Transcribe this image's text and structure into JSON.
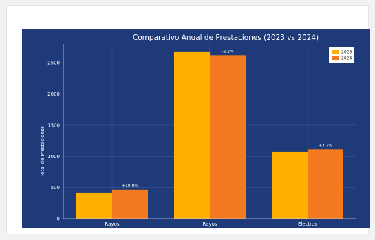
{
  "colors": {
    "page_background": "#f2f2f2",
    "plot_background": "#1f3a78",
    "grid": "#3a5696",
    "series_2023": "#ffb000",
    "series_2024": "#f47a1f",
    "legend_background": "#ffffff"
  },
  "chart_data": {
    "type": "bar",
    "title": "Comparativo Anual de Prestaciones (2023 vs 2024)",
    "xlabel": "",
    "ylabel": "Total de Prestaciones",
    "ylim": [
      0,
      2800
    ],
    "yticks": [
      "0",
      "500",
      "1000",
      "1500",
      "2000",
      "2500"
    ],
    "grid": true,
    "legend_position": "top-right",
    "categories": [
      [
        "Rayos",
        "Dentales"
      ],
      [
        "Rayos"
      ],
      [
        "Electros"
      ]
    ],
    "series": [
      {
        "name": "2023",
        "values": [
          420,
          2680,
          1070
        ]
      },
      {
        "name": "2024",
        "values": [
          465,
          2620,
          1110
        ]
      }
    ],
    "annotations": [
      "+10.8%",
      "-2.2%",
      "+3.7%"
    ]
  }
}
